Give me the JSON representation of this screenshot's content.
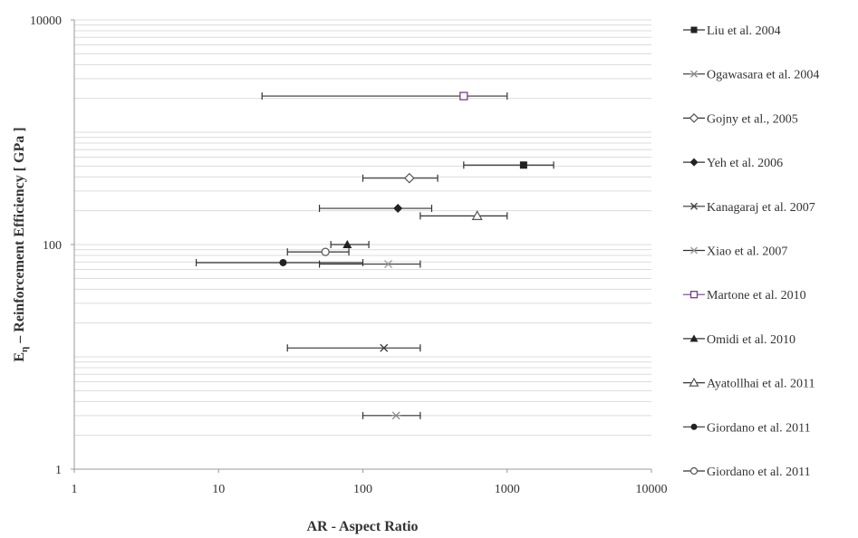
{
  "chart_data": {
    "type": "scatter",
    "xscale": "log",
    "yscale": "log",
    "xlim": [
      1,
      10000
    ],
    "ylim": [
      1,
      10000
    ],
    "xticks": [
      "1",
      "10",
      "100",
      "1000",
      "10000"
    ],
    "yticks": [
      "1",
      "100",
      "10000"
    ],
    "xlabel": "AR - Aspect Ratio",
    "ylabel_main": "E",
    "ylabel_sub": "η",
    "ylabel_rest": " – Reinforcement Efficiency  [ GPa ]",
    "grid": "horizontal minor",
    "legend_position": "right",
    "series": [
      {
        "name": "Liu et al. 2004",
        "marker": "square-filled",
        "points": [
          {
            "x": 1300,
            "y": 510,
            "xerr": [
              500,
              2100
            ]
          }
        ]
      },
      {
        "name": "Ogawasara et al. 2004",
        "marker": "star",
        "points": [
          {
            "x": 170,
            "y": 3,
            "xerr": [
              100,
              250
            ]
          }
        ]
      },
      {
        "name": "Gojny et al., 2005",
        "marker": "diamond-open",
        "points": [
          {
            "x": 210,
            "y": 390,
            "xerr": [
              100,
              330
            ]
          }
        ]
      },
      {
        "name": "Yeh et al. 2006",
        "marker": "diamond-filled",
        "points": [
          {
            "x": 175,
            "y": 210,
            "xerr": [
              50,
              300
            ]
          }
        ]
      },
      {
        "name": "Kanagaraj et al. 2007",
        "marker": "cross",
        "points": [
          {
            "x": 140,
            "y": 12,
            "xerr": [
              30,
              250
            ]
          }
        ]
      },
      {
        "name": "Xiao  et al. 2007",
        "marker": "x-light",
        "points": [
          {
            "x": 150,
            "y": 67,
            "xerr": [
              50,
              250
            ]
          }
        ]
      },
      {
        "name": "Martone et al. 2010",
        "marker": "square-open-purple",
        "points": [
          {
            "x": 500,
            "y": 2100,
            "xerr": [
              20,
              1000
            ]
          }
        ]
      },
      {
        "name": "Omidi et al. 2010",
        "marker": "triangle-filled",
        "points": [
          {
            "x": 78,
            "y": 100,
            "xerr": [
              60,
              110
            ]
          }
        ]
      },
      {
        "name": "Ayatollhai et al. 2011",
        "marker": "triangle-open",
        "points": [
          {
            "x": 620,
            "y": 180,
            "xerr": [
              250,
              1000
            ]
          }
        ]
      },
      {
        "name": "Giordano et al. 2011",
        "marker": "circle-filled",
        "points": [
          {
            "x": 28,
            "y": 69,
            "xerr": [
              7,
              100
            ]
          }
        ]
      },
      {
        "name": "Giordano et al. 2011",
        "marker": "circle-open",
        "points": [
          {
            "x": 55,
            "y": 86,
            "xerr": [
              30,
              80
            ]
          }
        ]
      }
    ]
  }
}
